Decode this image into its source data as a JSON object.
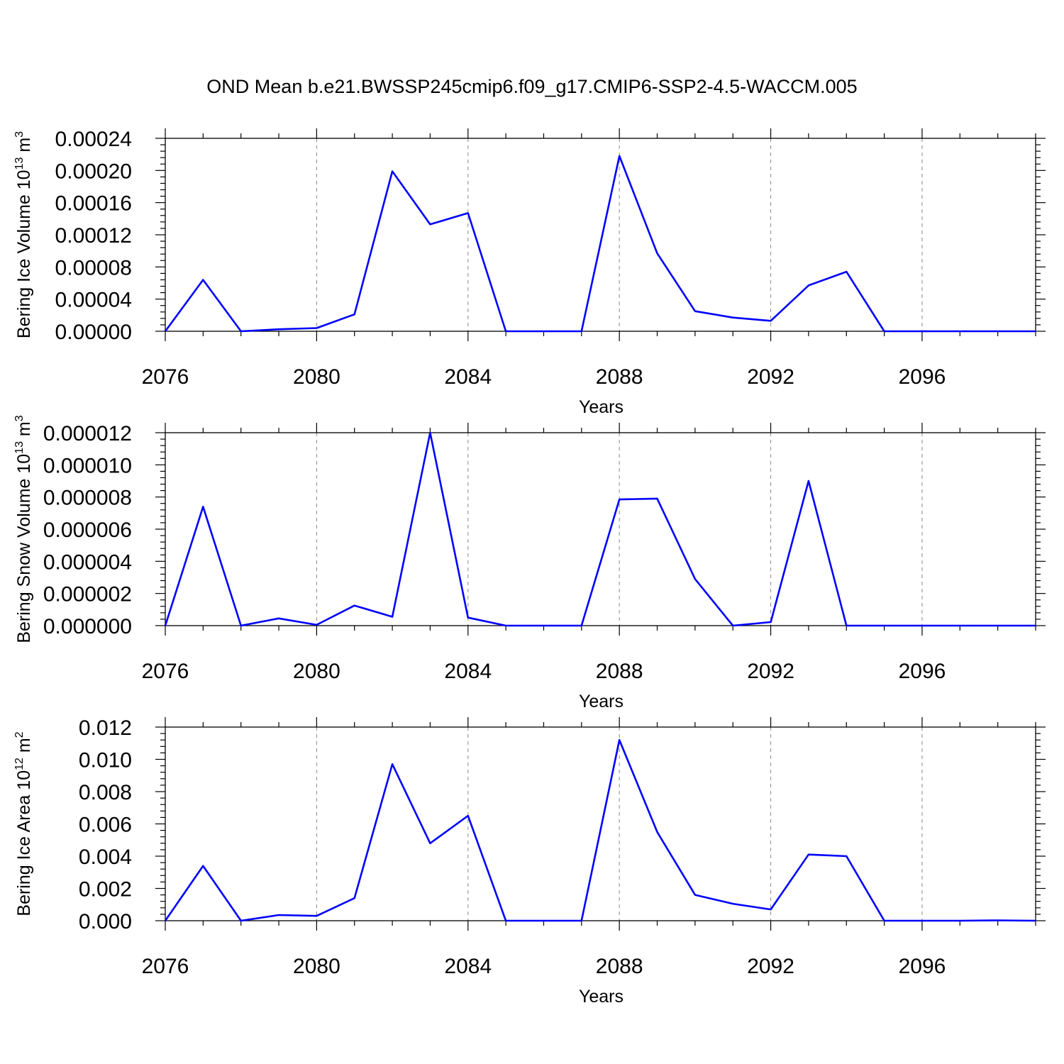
{
  "title": "OND Mean b.e21.BWSSP245cmip6.f09_g17.CMIP6-SSP2-4.5-WACCM.005",
  "colors": {
    "line": "#0000ff",
    "axis": "#000000",
    "grid": "#888888"
  },
  "chart_data": [
    {
      "type": "line",
      "xlabel": "Years",
      "ylabel": {
        "main": "Bering Ice Volume 10",
        "sup": "13",
        "unit": " m",
        "unit_sup": "3"
      },
      "xlim": [
        2076,
        2099
      ],
      "ylim": [
        0,
        0.00024
      ],
      "xticks": [
        "2076",
        "2080",
        "2084",
        "2088",
        "2092",
        "2096"
      ],
      "yticks": [
        "0.00000",
        "0.00004",
        "0.00008",
        "0.00012",
        "0.00016",
        "0.00020",
        "0.00024"
      ],
      "grid": "dashed vertical at major x ticks",
      "x": [
        2076,
        2077,
        2078,
        2079,
        2080,
        2081,
        2082,
        2083,
        2084,
        2085,
        2086,
        2087,
        2088,
        2089,
        2090,
        2091,
        2092,
        2093,
        2094,
        2095,
        2096,
        2097,
        2098,
        2099
      ],
      "values": [
        0.0,
        6.4e-05,
        0.0,
        2.5e-06,
        4e-06,
        2.1e-05,
        0.000199,
        0.000133,
        0.000147,
        0.0,
        0.0,
        0.0,
        0.000218,
        9.7e-05,
        2.5e-05,
        1.7e-05,
        1.3e-05,
        5.7e-05,
        7.4e-05,
        0.0,
        0.0,
        0.0,
        0.0,
        0.0
      ]
    },
    {
      "type": "line",
      "xlabel": "Years",
      "ylabel": {
        "main": "Bering Snow Volume 10",
        "sup": "13",
        "unit": " m",
        "unit_sup": "3"
      },
      "xlim": [
        2076,
        2099
      ],
      "ylim": [
        0,
        1.2e-05
      ],
      "xticks": [
        "2076",
        "2080",
        "2084",
        "2088",
        "2092",
        "2096"
      ],
      "yticks": [
        "0.000000",
        "0.000002",
        "0.000004",
        "0.000006",
        "0.000008",
        "0.000010",
        "0.000012"
      ],
      "grid": "dashed vertical at major x ticks",
      "x": [
        2076,
        2077,
        2078,
        2079,
        2080,
        2081,
        2082,
        2083,
        2084,
        2085,
        2086,
        2087,
        2088,
        2089,
        2090,
        2091,
        2092,
        2093,
        2094,
        2095,
        2096,
        2097,
        2098,
        2099
      ],
      "values": [
        0.0,
        7.4e-06,
        0.0,
        4.5e-07,
        5e-08,
        1.25e-06,
        5.5e-07,
        1.2e-05,
        5e-07,
        0.0,
        0.0,
        0.0,
        7.85e-06,
        7.9e-06,
        2.9e-06,
        0.0,
        2.2e-07,
        9e-06,
        0.0,
        0.0,
        0.0,
        0.0,
        0.0,
        0.0
      ]
    },
    {
      "type": "line",
      "xlabel": "Years",
      "ylabel": {
        "main": "Bering Ice Area 10",
        "sup": "12",
        "unit": " m",
        "unit_sup": "2"
      },
      "xlim": [
        2076,
        2099
      ],
      "ylim": [
        0,
        0.012
      ],
      "xticks": [
        "2076",
        "2080",
        "2084",
        "2088",
        "2092",
        "2096"
      ],
      "yticks": [
        "0.000",
        "0.002",
        "0.004",
        "0.006",
        "0.008",
        "0.010",
        "0.012"
      ],
      "grid": "dashed vertical at major x ticks",
      "x": [
        2076,
        2077,
        2078,
        2079,
        2080,
        2081,
        2082,
        2083,
        2084,
        2085,
        2086,
        2087,
        2088,
        2089,
        2090,
        2091,
        2092,
        2093,
        2094,
        2095,
        2096,
        2097,
        2098,
        2099
      ],
      "values": [
        0.0,
        0.0034,
        0.0,
        0.00035,
        0.0003,
        0.0014,
        0.0097,
        0.0048,
        0.0065,
        0.0,
        0.0,
        0.0,
        0.0112,
        0.0055,
        0.0016,
        0.00105,
        0.0007,
        0.0041,
        0.004,
        0.0,
        0.0,
        0.0,
        2e-05,
        0.0
      ]
    }
  ]
}
